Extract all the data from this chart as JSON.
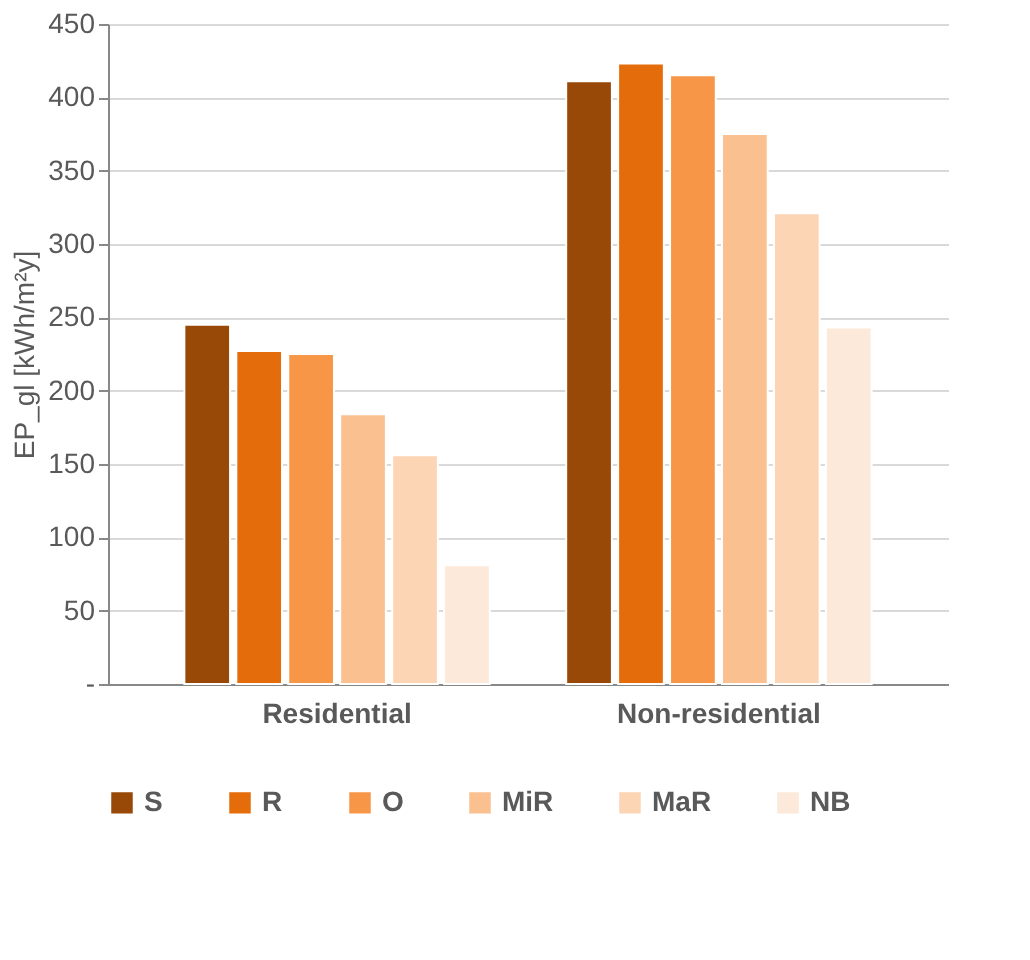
{
  "chart_data": {
    "type": "bar",
    "ylabel": "EP_gl [kWh/m²y]",
    "categories": [
      "Residential",
      "Non-residential"
    ],
    "series": [
      {
        "name": "S",
        "color": "#984807",
        "values": [
          245,
          411
        ]
      },
      {
        "name": "R",
        "color": "#e46c0a",
        "values": [
          227,
          423
        ]
      },
      {
        "name": "O",
        "color": "#f79646",
        "values": [
          225,
          415
        ]
      },
      {
        "name": "MiR",
        "color": "#fac090",
        "values": [
          184,
          375
        ]
      },
      {
        "name": "MaR",
        "color": "#fcd5b5",
        "values": [
          156,
          321
        ]
      },
      {
        "name": "NB",
        "color": "#fde9d9",
        "values": [
          81,
          243
        ]
      }
    ],
    "ylim": [
      0,
      450
    ],
    "yticks": [
      {
        "value": 0,
        "label": "-"
      },
      50,
      100,
      150,
      200,
      250,
      300,
      350,
      400,
      450
    ],
    "grid": "y",
    "legend": "bottom"
  }
}
